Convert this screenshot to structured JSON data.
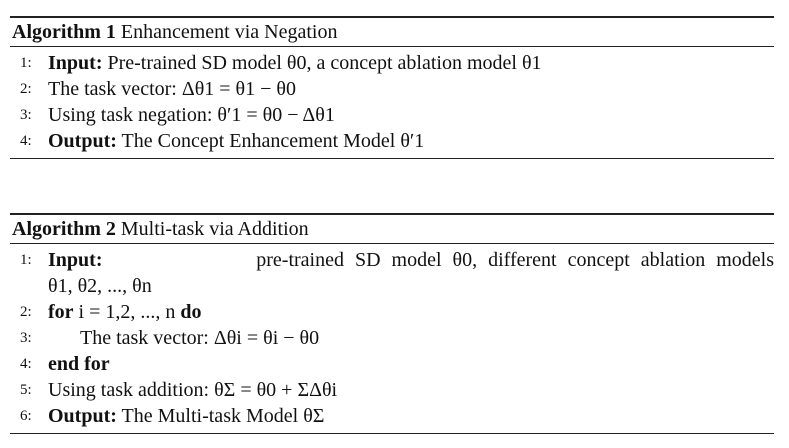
{
  "algorithms": [
    {
      "label": "Algorithm 1",
      "title": "Enhancement via Negation",
      "lines": [
        {
          "num": "1:",
          "kw": "Input:",
          "text": "Pre-trained SD model θ0, a concept ablation model θ1"
        },
        {
          "num": "2:",
          "kw": "",
          "text": "The task vector: Δθ1 = θ1 − θ0"
        },
        {
          "num": "3:",
          "kw": "",
          "text": "Using task negation: θ′1 = θ0 − Δθ1"
        },
        {
          "num": "4:",
          "kw": "Output:",
          "text": "The Concept Enhancement Model θ′1"
        }
      ]
    },
    {
      "label": "Algorithm 2",
      "title": "Multi-task via Addition",
      "lines": [
        {
          "num": "1:",
          "kw": "Input:",
          "text": "pre-trained SD model θ0, different concept ablation models",
          "cont": "θ1, θ2, ..., θn"
        },
        {
          "num": "2:",
          "kw": "for",
          "text": "i = 1,2, ..., n",
          "kw2": "do"
        },
        {
          "num": "3:",
          "kw": "",
          "text": "The task vector: Δθi = θi − θ0"
        },
        {
          "num": "4:",
          "kw": "end for",
          "text": ""
        },
        {
          "num": "5:",
          "kw": "",
          "text": "Using task addition: θΣ = θ0 + ΣΔθi"
        },
        {
          "num": "6:",
          "kw": "Output:",
          "text": "The Multi-task Model θΣ"
        }
      ]
    }
  ]
}
